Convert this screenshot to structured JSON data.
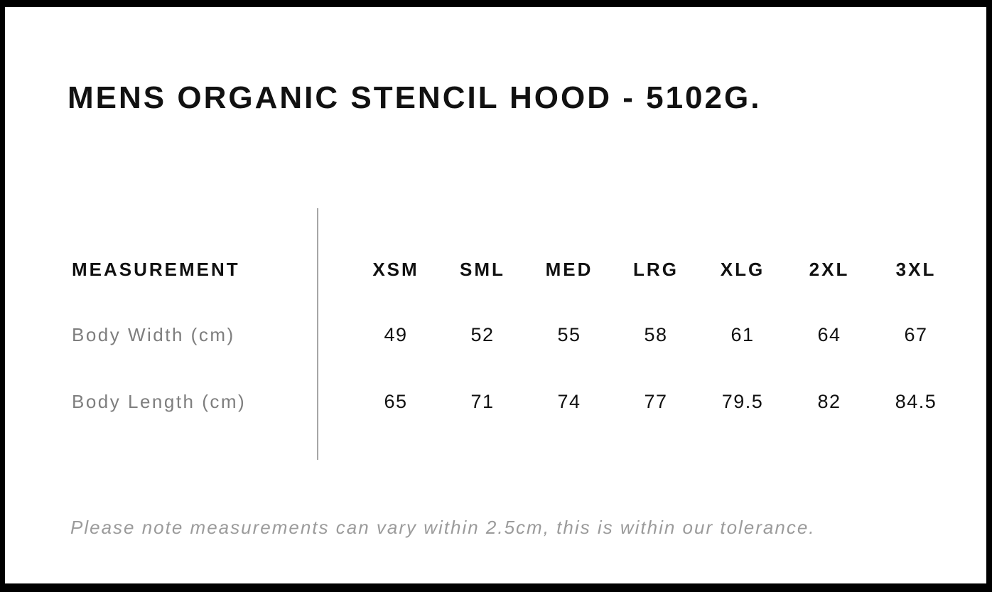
{
  "page": {
    "title": "MENS ORGANIC STENCIL HOOD - 5102G."
  },
  "size_table": {
    "measurement_label": "MEASUREMENT",
    "sizes": [
      "XSM",
      "SML",
      "MED",
      "LRG",
      "XLG",
      "2XL",
      "3XL"
    ],
    "rows": [
      {
        "label": "Body Width (cm)",
        "values": [
          "49",
          "52",
          "55",
          "58",
          "61",
          "64",
          "67"
        ]
      },
      {
        "label": "Body Length (cm)",
        "values": [
          "65",
          "71",
          "74",
          "77",
          "79.5",
          "82",
          "84.5"
        ]
      }
    ]
  },
  "footer": {
    "note": "Please note measurements can vary within 2.5cm, this is within our tolerance."
  },
  "colors": {
    "frame_border": "#000000",
    "heading_text": "#111111",
    "value_text": "#111111",
    "label_gray": "#7e7e7e",
    "note_gray": "#9b9b9b",
    "divider_gray": "#a6a6a6",
    "background": "#ffffff"
  },
  "chart_data": {
    "type": "table",
    "title": "MENS ORGANIC STENCIL HOOD - 5102G.",
    "columns": [
      "MEASUREMENT",
      "XSM",
      "SML",
      "MED",
      "LRG",
      "XLG",
      "2XL",
      "3XL"
    ],
    "rows": [
      [
        "Body Width (cm)",
        49,
        52,
        55,
        58,
        61,
        64,
        67
      ],
      [
        "Body Length (cm)",
        65,
        71,
        74,
        77,
        79.5,
        82,
        84.5
      ]
    ],
    "note": "Please note measurements can vary within 2.5cm, this is within our tolerance."
  }
}
